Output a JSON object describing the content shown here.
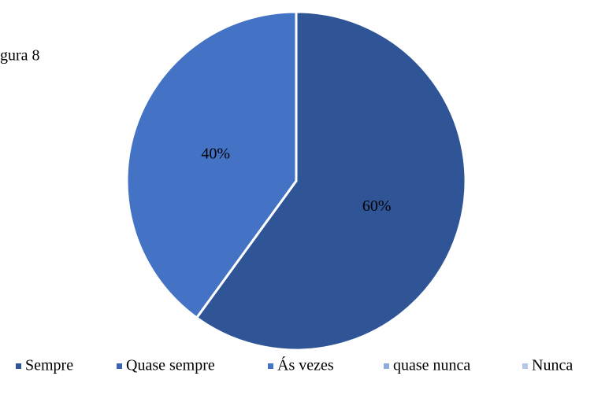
{
  "chart_data": {
    "type": "pie",
    "title": "gura 8",
    "categories": [
      "Sempre",
      "Quase sempre",
      "Ás vezes",
      "quase nunca",
      "Nunca"
    ],
    "values": [
      60,
      0,
      40,
      0,
      0
    ],
    "value_labels": [
      "60%",
      null,
      "40%",
      null,
      null
    ],
    "colors": [
      "#2f5597",
      "#3a62b5",
      "#4472c4",
      "#8faadc",
      "#b4c7e7"
    ],
    "legend": "bottom"
  }
}
